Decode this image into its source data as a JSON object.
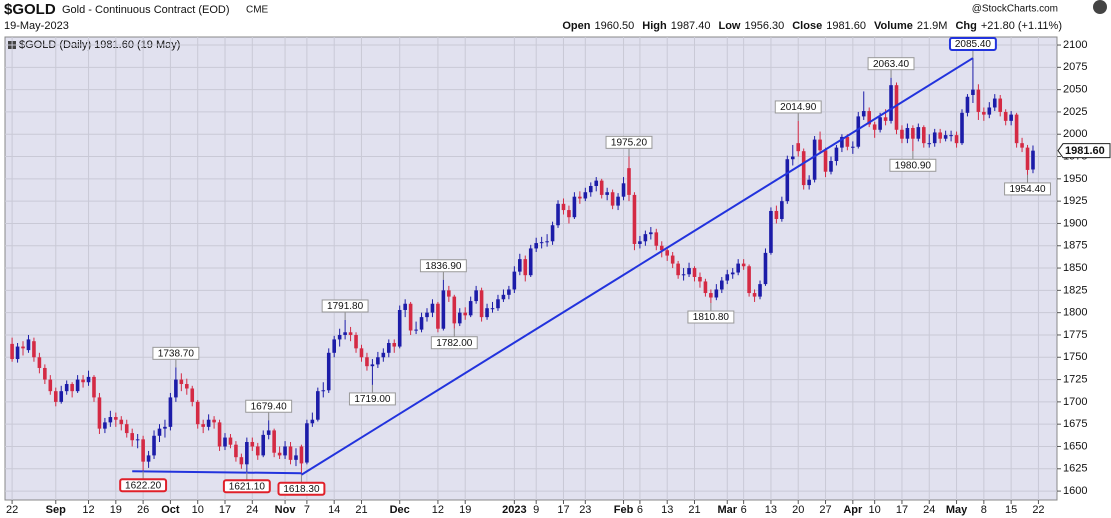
{
  "header": {
    "symbol": "$GOLD",
    "name": "Gold - Continuous Contract (EOD)",
    "exchange": "CME",
    "date": "19-May-2023",
    "source": "@StockCharts.com",
    "stats": [
      {
        "label": "Open",
        "value": "1960.50"
      },
      {
        "label": "High",
        "value": "1987.40"
      },
      {
        "label": "Low",
        "value": "1956.30"
      },
      {
        "label": "Close",
        "value": "1981.60"
      },
      {
        "label": "Volume",
        "value": "21.9M"
      },
      {
        "label": "Chg",
        "value": "+21.80 (+1.11%)"
      }
    ]
  },
  "chart_data": {
    "type": "candlestick",
    "legend_label": "$GOLD (Daily) 1981.60 (19 May)",
    "up_color": "#1c1ca8",
    "down_color": "#d42a44",
    "grid": true,
    "last_price": {
      "value": 1981.6,
      "label": "1981.60"
    },
    "xlim": [
      -1.3,
      191.4
    ],
    "ylim": [
      1590,
      2109
    ],
    "yticks": [
      1600,
      1625,
      1650,
      1675,
      1700,
      1725,
      1750,
      1775,
      1800,
      1825,
      1850,
      1875,
      1900,
      1925,
      1950,
      1975,
      2000,
      2025,
      2050,
      2075,
      2100
    ],
    "xticks": [
      {
        "value": 0,
        "label": "22"
      },
      {
        "value": 8,
        "label": "Sep"
      },
      {
        "value": 14,
        "label": "12"
      },
      {
        "value": 19,
        "label": "19"
      },
      {
        "value": 24,
        "label": "26"
      },
      {
        "value": 29,
        "label": "Oct"
      },
      {
        "value": 34,
        "label": "10"
      },
      {
        "value": 39,
        "label": "17"
      },
      {
        "value": 44,
        "label": "24"
      },
      {
        "value": 50,
        "label": "Nov"
      },
      {
        "value": 54,
        "label": "7"
      },
      {
        "value": 59,
        "label": "14"
      },
      {
        "value": 64,
        "label": "21"
      },
      {
        "value": 71,
        "label": "Dec"
      },
      {
        "value": 78,
        "label": "12"
      },
      {
        "value": 83,
        "label": "19"
      },
      {
        "value": 92,
        "label": "2023"
      },
      {
        "value": 96,
        "label": "9"
      },
      {
        "value": 101,
        "label": "17"
      },
      {
        "value": 105,
        "label": "23"
      },
      {
        "value": 112,
        "label": "Feb"
      },
      {
        "value": 115,
        "label": "6"
      },
      {
        "value": 120,
        "label": "13"
      },
      {
        "value": 125,
        "label": "21"
      },
      {
        "value": 131,
        "label": "Mar"
      },
      {
        "value": 134,
        "label": "6"
      },
      {
        "value": 139,
        "label": "13"
      },
      {
        "value": 144,
        "label": "20"
      },
      {
        "value": 149,
        "label": "27"
      },
      {
        "value": 154,
        "label": "Apr"
      },
      {
        "value": 158,
        "label": "10"
      },
      {
        "value": 163,
        "label": "17"
      },
      {
        "value": 168,
        "label": "24"
      },
      {
        "value": 173,
        "label": "May"
      },
      {
        "value": 178,
        "label": "8"
      },
      {
        "value": 183,
        "label": "15"
      },
      {
        "value": 188,
        "label": "22"
      }
    ],
    "ohlc": [
      [
        1765,
        1772,
        1745,
        1748
      ],
      [
        1748,
        1766,
        1744,
        1762
      ],
      [
        1762,
        1768,
        1752,
        1760
      ],
      [
        1758,
        1775,
        1755,
        1770
      ],
      [
        1768,
        1772,
        1745,
        1750
      ],
      [
        1750,
        1755,
        1732,
        1738
      ],
      [
        1738,
        1742,
        1720,
        1725
      ],
      [
        1725,
        1730,
        1708,
        1712
      ],
      [
        1712,
        1716,
        1695,
        1700
      ],
      [
        1700,
        1718,
        1698,
        1712
      ],
      [
        1712,
        1724,
        1708,
        1720
      ],
      [
        1720,
        1722,
        1705,
        1712
      ],
      [
        1712,
        1730,
        1710,
        1725
      ],
      [
        1725,
        1730,
        1716,
        1722
      ],
      [
        1722,
        1735,
        1718,
        1728
      ],
      [
        1728,
        1730,
        1700,
        1705
      ],
      [
        1705,
        1710,
        1664,
        1670
      ],
      [
        1670,
        1682,
        1665,
        1677
      ],
      [
        1677,
        1690,
        1672,
        1683
      ],
      [
        1683,
        1688,
        1672,
        1680
      ],
      [
        1680,
        1684,
        1668,
        1675
      ],
      [
        1675,
        1680,
        1660,
        1665
      ],
      [
        1665,
        1670,
        1650,
        1657
      ],
      [
        1657,
        1664,
        1648,
        1658
      ],
      [
        1658,
        1662,
        1622.2,
        1633
      ],
      [
        1633,
        1645,
        1626,
        1640
      ],
      [
        1640,
        1668,
        1636,
        1662
      ],
      [
        1662,
        1675,
        1655,
        1670
      ],
      [
        1670,
        1680,
        1660,
        1672
      ],
      [
        1672,
        1710,
        1668,
        1705
      ],
      [
        1705,
        1738.7,
        1700,
        1725
      ],
      [
        1725,
        1732,
        1712,
        1720
      ],
      [
        1720,
        1726,
        1708,
        1715
      ],
      [
        1715,
        1718,
        1695,
        1700
      ],
      [
        1700,
        1702,
        1670,
        1675
      ],
      [
        1675,
        1680,
        1665,
        1672
      ],
      [
        1672,
        1686,
        1668,
        1680
      ],
      [
        1680,
        1684,
        1670,
        1677
      ],
      [
        1677,
        1680,
        1645,
        1650
      ],
      [
        1650,
        1665,
        1646,
        1660
      ],
      [
        1660,
        1664,
        1648,
        1652
      ],
      [
        1652,
        1656,
        1633,
        1638
      ],
      [
        1638,
        1642,
        1625,
        1630
      ],
      [
        1630,
        1660,
        1621.1,
        1655
      ],
      [
        1655,
        1660,
        1645,
        1650
      ],
      [
        1650,
        1654,
        1635,
        1640
      ],
      [
        1640,
        1668,
        1638,
        1663
      ],
      [
        1663,
        1679.4,
        1658,
        1668
      ],
      [
        1668,
        1670,
        1638,
        1643
      ],
      [
        1643,
        1650,
        1636,
        1640
      ],
      [
        1640,
        1656,
        1636,
        1650
      ],
      [
        1650,
        1655,
        1630,
        1635
      ],
      [
        1635,
        1648,
        1628,
        1640
      ],
      [
        1650,
        1652,
        1618.3,
        1631
      ],
      [
        1632,
        1680,
        1630,
        1676
      ],
      [
        1676,
        1688,
        1672,
        1680
      ],
      [
        1680,
        1716,
        1678,
        1712
      ],
      [
        1712,
        1722,
        1705,
        1713
      ],
      [
        1713,
        1760,
        1710,
        1755
      ],
      [
        1755,
        1774,
        1750,
        1770
      ],
      [
        1770,
        1782,
        1762,
        1775
      ],
      [
        1775,
        1791.8,
        1770,
        1778
      ],
      [
        1778,
        1784,
        1768,
        1775
      ],
      [
        1775,
        1778,
        1755,
        1760
      ],
      [
        1760,
        1764,
        1745,
        1750
      ],
      [
        1750,
        1755,
        1735,
        1740
      ],
      [
        1740,
        1748,
        1719,
        1742
      ],
      [
        1742,
        1756,
        1738,
        1750
      ],
      [
        1750,
        1760,
        1745,
        1755
      ],
      [
        1755,
        1770,
        1750,
        1766
      ],
      [
        1766,
        1770,
        1755,
        1762
      ],
      [
        1762,
        1808,
        1760,
        1803
      ],
      [
        1803,
        1815,
        1795,
        1810
      ],
      [
        1810,
        1812,
        1775,
        1780
      ],
      [
        1780,
        1790,
        1776,
        1781
      ],
      [
        1781,
        1800,
        1778,
        1795
      ],
      [
        1795,
        1805,
        1790,
        1800
      ],
      [
        1800,
        1815,
        1795,
        1810
      ],
      [
        1810,
        1812,
        1778,
        1782
      ],
      [
        1782,
        1836.9,
        1780,
        1825
      ],
      [
        1825,
        1830,
        1812,
        1818
      ],
      [
        1818,
        1820,
        1782,
        1788
      ],
      [
        1788,
        1805,
        1785,
        1800
      ],
      [
        1800,
        1806,
        1792,
        1797
      ],
      [
        1797,
        1818,
        1795,
        1813
      ],
      [
        1813,
        1830,
        1810,
        1825
      ],
      [
        1825,
        1828,
        1790,
        1795
      ],
      [
        1795,
        1810,
        1792,
        1805
      ],
      [
        1805,
        1812,
        1800,
        1805
      ],
      [
        1805,
        1820,
        1802,
        1815
      ],
      [
        1815,
        1826,
        1812,
        1820
      ],
      [
        1820,
        1830,
        1815,
        1826
      ],
      [
        1826,
        1852,
        1822,
        1846
      ],
      [
        1846,
        1866,
        1842,
        1860
      ],
      [
        1860,
        1864,
        1835,
        1842
      ],
      [
        1842,
        1876,
        1840,
        1872
      ],
      [
        1872,
        1884,
        1868,
        1878
      ],
      [
        1878,
        1885,
        1872,
        1879
      ],
      [
        1879,
        1888,
        1874,
        1880
      ],
      [
        1880,
        1902,
        1876,
        1898
      ],
      [
        1898,
        1926,
        1895,
        1922
      ],
      [
        1922,
        1928,
        1910,
        1915
      ],
      [
        1915,
        1920,
        1900,
        1907
      ],
      [
        1907,
        1935,
        1905,
        1930
      ],
      [
        1930,
        1936,
        1922,
        1928
      ],
      [
        1928,
        1940,
        1925,
        1935
      ],
      [
        1935,
        1946,
        1930,
        1942
      ],
      [
        1942,
        1952,
        1936,
        1948
      ],
      [
        1948,
        1950,
        1928,
        1932
      ],
      [
        1932,
        1940,
        1926,
        1935
      ],
      [
        1935,
        1938,
        1916,
        1920
      ],
      [
        1920,
        1934,
        1915,
        1930
      ],
      [
        1930,
        1952,
        1926,
        1945
      ],
      [
        1962,
        1975.2,
        1925,
        1932
      ],
      [
        1932,
        1935,
        1870,
        1877
      ],
      [
        1877,
        1886,
        1872,
        1880
      ],
      [
        1880,
        1892,
        1875,
        1888
      ],
      [
        1888,
        1896,
        1882,
        1890
      ],
      [
        1890,
        1894,
        1870,
        1875
      ],
      [
        1875,
        1880,
        1862,
        1870
      ],
      [
        1870,
        1874,
        1858,
        1864
      ],
      [
        1864,
        1868,
        1850,
        1855
      ],
      [
        1855,
        1858,
        1838,
        1842
      ],
      [
        1842,
        1850,
        1836,
        1843
      ],
      [
        1843,
        1856,
        1840,
        1850
      ],
      [
        1850,
        1852,
        1835,
        1840
      ],
      [
        1840,
        1845,
        1828,
        1835
      ],
      [
        1835,
        1838,
        1818,
        1822
      ],
      [
        1822,
        1826,
        1810.8,
        1817
      ],
      [
        1817,
        1832,
        1814,
        1826
      ],
      [
        1826,
        1840,
        1822,
        1836
      ],
      [
        1836,
        1848,
        1832,
        1843
      ],
      [
        1843,
        1850,
        1838,
        1845
      ],
      [
        1845,
        1860,
        1842,
        1855
      ],
      [
        1855,
        1860,
        1848,
        1852
      ],
      [
        1852,
        1854,
        1818,
        1822
      ],
      [
        1822,
        1826,
        1812,
        1818
      ],
      [
        1818,
        1836,
        1815,
        1832
      ],
      [
        1832,
        1872,
        1830,
        1867
      ],
      [
        1867,
        1918,
        1865,
        1914
      ],
      [
        1914,
        1920,
        1900,
        1905
      ],
      [
        1905,
        1930,
        1902,
        1925
      ],
      [
        1925,
        1976,
        1922,
        1972
      ],
      [
        1972,
        1988,
        1965,
        1975
      ],
      [
        1990,
        2014.9,
        1975,
        1981
      ],
      [
        1981,
        1984,
        1938,
        1943
      ],
      [
        1943,
        1954,
        1938,
        1949
      ],
      [
        1949,
        1998,
        1946,
        1994
      ],
      [
        1994,
        2003,
        1978,
        1982
      ],
      [
        1982,
        1985,
        1952,
        1958
      ],
      [
        1958,
        1975,
        1955,
        1970
      ],
      [
        1970,
        1988,
        1965,
        1985
      ],
      [
        1985,
        2000,
        1980,
        1997
      ],
      [
        1997,
        2000,
        1982,
        1986
      ],
      [
        1986,
        1992,
        1978,
        1986
      ],
      [
        1986,
        2025,
        1984,
        2020
      ],
      [
        2020,
        2048,
        2016,
        2026
      ],
      [
        2026,
        2030,
        2008,
        2011
      ],
      [
        2011,
        2014,
        1996,
        2005
      ],
      [
        2005,
        2024,
        2002,
        2019
      ],
      [
        2019,
        2028,
        2010,
        2015
      ],
      [
        2015,
        2063.4,
        2012,
        2055
      ],
      [
        2055,
        2058,
        2000,
        2005
      ],
      [
        2005,
        2010,
        1990,
        1995
      ],
      [
        1995,
        2012,
        1990,
        2007
      ],
      [
        2007,
        2010,
        1980.9,
        1995
      ],
      [
        1995,
        2012,
        1992,
        2008
      ],
      [
        2008,
        2010,
        1985,
        1990
      ],
      [
        1990,
        2000,
        1985,
        1990
      ],
      [
        1990,
        2006,
        1986,
        2002
      ],
      [
        2002,
        2006,
        1990,
        1995
      ],
      [
        1995,
        2004,
        1992,
        1999
      ],
      [
        1999,
        2004,
        1992,
        1999
      ],
      [
        1999,
        2003,
        1985,
        1990
      ],
      [
        1990,
        2028,
        1988,
        2024
      ],
      [
        2024,
        2045,
        2020,
        2042
      ],
      [
        2044,
        2085.4,
        2035,
        2050
      ],
      [
        2050,
        2056,
        2016,
        2025
      ],
      [
        2025,
        2030,
        2015,
        2022
      ],
      [
        2022,
        2036,
        2018,
        2030
      ],
      [
        2030,
        2045,
        2026,
        2040
      ],
      [
        2040,
        2044,
        2020,
        2025
      ],
      [
        2025,
        2028,
        2010,
        2015
      ],
      [
        2015,
        2026,
        2010,
        2022
      ],
      [
        2022,
        2024,
        1985,
        1990
      ],
      [
        1990,
        1996,
        1980,
        1985
      ],
      [
        1985,
        1988,
        1954.4,
        1960
      ],
      [
        1960.5,
        1987.4,
        1956.3,
        1981.6
      ]
    ],
    "annotations": [
      {
        "x": 24,
        "value": 1622.2,
        "label": "1622.20",
        "position": "below",
        "highlight": "#e0202a"
      },
      {
        "x": 30,
        "value": 1738.7,
        "label": "1738.70",
        "position": "above"
      },
      {
        "x": 43,
        "value": 1621.1,
        "label": "1621.10",
        "position": "below",
        "highlight": "#e0202a"
      },
      {
        "x": 47,
        "value": 1679.4,
        "label": "1679.40",
        "position": "above"
      },
      {
        "x": 53,
        "value": 1618.3,
        "label": "1618.30",
        "position": "below",
        "highlight": "#e0202a"
      },
      {
        "x": 61,
        "value": 1791.8,
        "label": "1791.80",
        "position": "above"
      },
      {
        "x": 66,
        "value": 1719,
        "label": "1719.00",
        "position": "below"
      },
      {
        "x": 79,
        "value": 1836.9,
        "label": "1836.90",
        "position": "above"
      },
      {
        "x": 81,
        "value": 1782,
        "label": "1782.00",
        "position": "below"
      },
      {
        "x": 113,
        "value": 1975.2,
        "label": "1975.20",
        "position": "above"
      },
      {
        "x": 128,
        "value": 1810.8,
        "label": "1810.80",
        "position": "below"
      },
      {
        "x": 144,
        "value": 2014.9,
        "label": "2014.90",
        "position": "above"
      },
      {
        "x": 161,
        "value": 2063.4,
        "label": "2063.40",
        "position": "above"
      },
      {
        "x": 165,
        "value": 1980.9,
        "label": "1980.90",
        "position": "below"
      },
      {
        "x": 176,
        "value": 2085.4,
        "label": "2085.40",
        "position": "above",
        "highlight": "#2233dd"
      },
      {
        "x": 186,
        "value": 1954.4,
        "label": "1954.40",
        "position": "below"
      }
    ],
    "trendlines": [
      {
        "color": "#2233dd",
        "points": [
          [
            22,
            1622.2
          ],
          [
            53,
            1620
          ]
        ]
      },
      {
        "color": "#2233dd",
        "points": [
          [
            53,
            1618.3
          ],
          [
            176,
            2085.4
          ]
        ]
      }
    ]
  }
}
